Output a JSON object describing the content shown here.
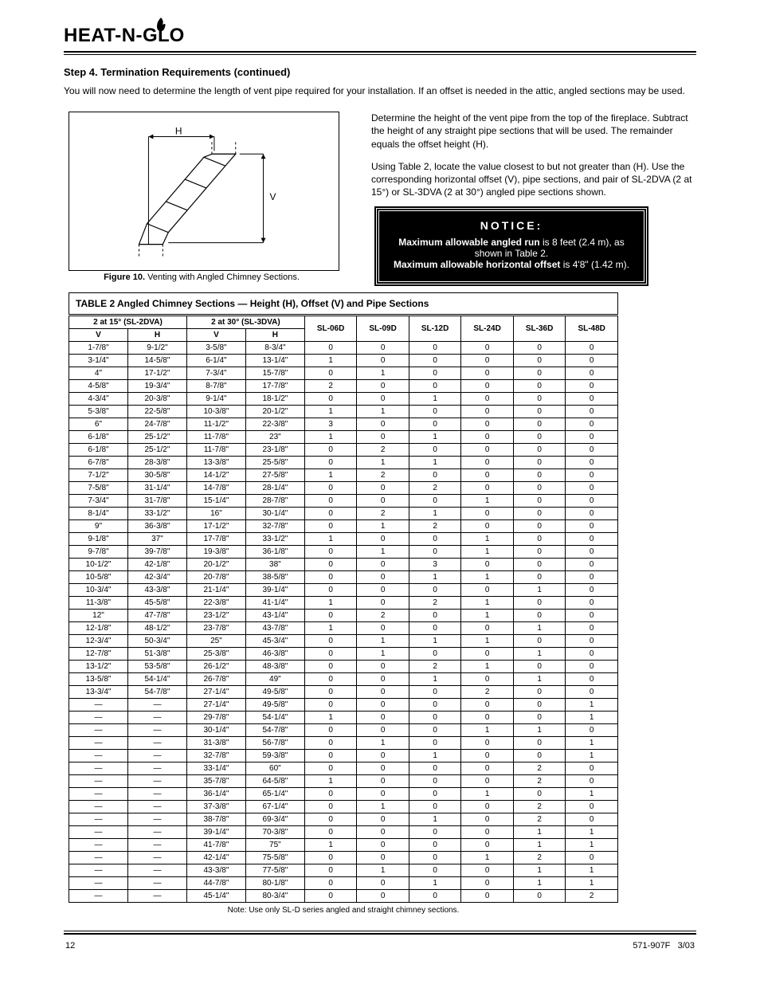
{
  "brand": {
    "name": "HEAT-N-GLO"
  },
  "hr_color": "#000000",
  "section_title": "Step 4. Termination Requirements (continued)",
  "intro": "You will now need to determine the length of vent pipe required for your installation. If an offset is needed in the attic, angled sections may be used.",
  "diagram": {
    "h_label": "H",
    "v_label": "V",
    "figure_number": "10",
    "figure_caption": "Figure 10. Venting with Angled Chimney Sections."
  },
  "right_column": {
    "text_1": "Determine the height of the vent pipe from the top of the fireplace. Subtract the height of any straight pipe sections that will be used. The remainder equals the offset height (H).",
    "text_2": "Using Table 2, locate the value closest to but not greater than (H). Use the corresponding horizontal offset (V), pipe sections, and pair of SL-2DVA (2 at 15°) or SL-3DVA (2 at 30°) angled pipe sections shown."
  },
  "notice_box": {
    "title": "NOTICE:",
    "bold_lead": "Maximum allowable angled run",
    "line1": " is 8 feet (2.4 m), as shown in Table 2.",
    "bold_lead2": "Maximum allowable horizontal offset",
    "line2": " is 4'8\" (1.42 m).",
    "bg_color": "#000000",
    "fg_color": "#ffffff"
  },
  "table": {
    "caption": "TABLE 2  Angled Chimney Sections — Height (H), Offset (V) and Pipe Sections",
    "col_headers_1": [
      "2 at 15° (SL-2DVA)",
      "2 at 30° (SL-3DVA)"
    ],
    "col_headers_2": [
      "V",
      "H",
      "V",
      "H"
    ],
    "pipe_headers": [
      "SL-06D",
      "SL-09D",
      "SL-12D",
      "SL-24D",
      "SL-36D",
      "SL-48D"
    ],
    "rows": [
      {
        "cells": [
          "1-7/8\"",
          "9-1/2\"",
          "3-5/8\"",
          "8-3/4\"",
          "0",
          "0",
          "0",
          "0",
          "0",
          "0"
        ]
      },
      {
        "cells": [
          "3-1/4\"",
          "14-5/8\"",
          "6-1/4\"",
          "13-1/4\"",
          "1",
          "0",
          "0",
          "0",
          "0",
          "0"
        ]
      },
      {
        "cells": [
          "4\"",
          "17-1/2\"",
          "7-3/4\"",
          "15-7/8\"",
          "0",
          "1",
          "0",
          "0",
          "0",
          "0"
        ]
      },
      {
        "cells": [
          "4-5/8\"",
          "19-3/4\"",
          "8-7/8\"",
          "17-7/8\"",
          "2",
          "0",
          "0",
          "0",
          "0",
          "0"
        ]
      },
      {
        "cells": [
          "4-3/4\"",
          "20-3/8\"",
          "9-1/4\"",
          "18-1/2\"",
          "0",
          "0",
          "1",
          "0",
          "0",
          "0"
        ]
      },
      {
        "cells": [
          "5-3/8\"",
          "22-5/8\"",
          "10-3/8\"",
          "20-1/2\"",
          "1",
          "1",
          "0",
          "0",
          "0",
          "0"
        ]
      },
      {
        "cells": [
          "6\"",
          "24-7/8\"",
          "11-1/2\"",
          "22-3/8\"",
          "3",
          "0",
          "0",
          "0",
          "0",
          "0"
        ]
      },
      {
        "cells": [
          "6-1/8\"",
          "25-1/2\"",
          "11-7/8\"",
          "23\"",
          "1",
          "0",
          "1",
          "0",
          "0",
          "0"
        ]
      },
      {
        "cells": [
          "6-1/8\"",
          "25-1/2\"",
          "11-7/8\"",
          "23-1/8\"",
          "0",
          "2",
          "0",
          "0",
          "0",
          "0"
        ]
      },
      {
        "cells": [
          "6-7/8\"",
          "28-3/8\"",
          "13-3/8\"",
          "25-5/8\"",
          "0",
          "1",
          "1",
          "0",
          "0",
          "0"
        ]
      },
      {
        "cells": [
          "7-1/2\"",
          "30-5/8\"",
          "14-1/2\"",
          "27-5/8\"",
          "1",
          "2",
          "0",
          "0",
          "0",
          "0"
        ]
      },
      {
        "cells": [
          "7-5/8\"",
          "31-1/4\"",
          "14-7/8\"",
          "28-1/4\"",
          "0",
          "0",
          "2",
          "0",
          "0",
          "0"
        ]
      },
      {
        "cells": [
          "7-3/4\"",
          "31-7/8\"",
          "15-1/4\"",
          "28-7/8\"",
          "0",
          "0",
          "0",
          "1",
          "0",
          "0"
        ]
      },
      {
        "cells": [
          "8-1/4\"",
          "33-1/2\"",
          "16\"",
          "30-1/4\"",
          "0",
          "2",
          "1",
          "0",
          "0",
          "0"
        ]
      },
      {
        "cells": [
          "9\"",
          "36-3/8\"",
          "17-1/2\"",
          "32-7/8\"",
          "0",
          "1",
          "2",
          "0",
          "0",
          "0"
        ]
      },
      {
        "cells": [
          "9-1/8\"",
          "37\"",
          "17-7/8\"",
          "33-1/2\"",
          "1",
          "0",
          "0",
          "1",
          "0",
          "0"
        ]
      },
      {
        "cells": [
          "9-7/8\"",
          "39-7/8\"",
          "19-3/8\"",
          "36-1/8\"",
          "0",
          "1",
          "0",
          "1",
          "0",
          "0"
        ]
      },
      {
        "cells": [
          "10-1/2\"",
          "42-1/8\"",
          "20-1/2\"",
          "38\"",
          "0",
          "0",
          "3",
          "0",
          "0",
          "0"
        ]
      },
      {
        "cells": [
          "10-5/8\"",
          "42-3/4\"",
          "20-7/8\"",
          "38-5/8\"",
          "0",
          "0",
          "1",
          "1",
          "0",
          "0"
        ]
      },
      {
        "cells": [
          "10-3/4\"",
          "43-3/8\"",
          "21-1/4\"",
          "39-1/4\"",
          "0",
          "0",
          "0",
          "0",
          "1",
          "0"
        ]
      },
      {
        "cells": [
          "11-3/8\"",
          "45-5/8\"",
          "22-3/8\"",
          "41-1/4\"",
          "1",
          "0",
          "2",
          "1",
          "0",
          "0"
        ]
      },
      {
        "cells": [
          "12\"",
          "47-7/8\"",
          "23-1/2\"",
          "43-1/4\"",
          "0",
          "2",
          "0",
          "1",
          "0",
          "0"
        ]
      },
      {
        "cells": [
          "12-1/8\"",
          "48-1/2\"",
          "23-7/8\"",
          "43-7/8\"",
          "1",
          "0",
          "0",
          "0",
          "1",
          "0"
        ]
      },
      {
        "cells": [
          "12-3/4\"",
          "50-3/4\"",
          "25\"",
          "45-3/4\"",
          "0",
          "1",
          "1",
          "1",
          "0",
          "0"
        ]
      },
      {
        "cells": [
          "12-7/8\"",
          "51-3/8\"",
          "25-3/8\"",
          "46-3/8\"",
          "0",
          "1",
          "0",
          "0",
          "1",
          "0"
        ]
      },
      {
        "cells": [
          "13-1/2\"",
          "53-5/8\"",
          "26-1/2\"",
          "48-3/8\"",
          "0",
          "0",
          "2",
          "1",
          "0",
          "0"
        ]
      },
      {
        "cells": [
          "13-5/8\"",
          "54-1/4\"",
          "26-7/8\"",
          "49\"",
          "0",
          "0",
          "1",
          "0",
          "1",
          "0"
        ]
      },
      {
        "cells": [
          "13-3/4\"",
          "54-7/8\"",
          "27-1/4\"",
          "49-5/8\"",
          "0",
          "0",
          "0",
          "2",
          "0",
          "0"
        ]
      },
      {
        "cells": [
          "—",
          "—",
          "27-1/4\"",
          "49-5/8\"",
          "0",
          "0",
          "0",
          "0",
          "0",
          "1"
        ]
      },
      {
        "cells": [
          "—",
          "—",
          "29-7/8\"",
          "54-1/4\"",
          "1",
          "0",
          "0",
          "0",
          "0",
          "1"
        ]
      },
      {
        "cells": [
          "—",
          "—",
          "30-1/4\"",
          "54-7/8\"",
          "0",
          "0",
          "0",
          "1",
          "1",
          "0"
        ]
      },
      {
        "cells": [
          "—",
          "—",
          "31-3/8\"",
          "56-7/8\"",
          "0",
          "1",
          "0",
          "0",
          "0",
          "1"
        ]
      },
      {
        "cells": [
          "—",
          "—",
          "32-7/8\"",
          "59-3/8\"",
          "0",
          "0",
          "1",
          "0",
          "0",
          "1"
        ]
      },
      {
        "cells": [
          "—",
          "—",
          "33-1/4\"",
          "60\"",
          "0",
          "0",
          "0",
          "0",
          "2",
          "0"
        ]
      },
      {
        "cells": [
          "—",
          "—",
          "35-7/8\"",
          "64-5/8\"",
          "1",
          "0",
          "0",
          "0",
          "2",
          "0"
        ]
      },
      {
        "cells": [
          "—",
          "—",
          "36-1/4\"",
          "65-1/4\"",
          "0",
          "0",
          "0",
          "1",
          "0",
          "1"
        ]
      },
      {
        "cells": [
          "—",
          "—",
          "37-3/8\"",
          "67-1/4\"",
          "0",
          "1",
          "0",
          "0",
          "2",
          "0"
        ]
      },
      {
        "cells": [
          "—",
          "—",
          "38-7/8\"",
          "69-3/4\"",
          "0",
          "0",
          "1",
          "0",
          "2",
          "0"
        ]
      },
      {
        "cells": [
          "—",
          "—",
          "39-1/4\"",
          "70-3/8\"",
          "0",
          "0",
          "0",
          "0",
          "1",
          "1"
        ]
      },
      {
        "cells": [
          "—",
          "—",
          "41-7/8\"",
          "75\"",
          "1",
          "0",
          "0",
          "0",
          "1",
          "1"
        ]
      },
      {
        "cells": [
          "—",
          "—",
          "42-1/4\"",
          "75-5/8\"",
          "0",
          "0",
          "0",
          "1",
          "2",
          "0"
        ]
      },
      {
        "cells": [
          "—",
          "—",
          "43-3/8\"",
          "77-5/8\"",
          "0",
          "1",
          "0",
          "0",
          "1",
          "1"
        ]
      },
      {
        "cells": [
          "—",
          "—",
          "44-7/8\"",
          "80-1/8\"",
          "0",
          "0",
          "1",
          "0",
          "1",
          "1"
        ]
      },
      {
        "cells": [
          "—",
          "—",
          "45-1/4\"",
          "80-3/4\"",
          "0",
          "0",
          "0",
          "0",
          "0",
          "2"
        ]
      }
    ],
    "footnote": "Note:  Use only SL-D series angled and straight chimney sections."
  },
  "footer": {
    "page": "12",
    "doc": "571-907F",
    "date": "3/03"
  }
}
